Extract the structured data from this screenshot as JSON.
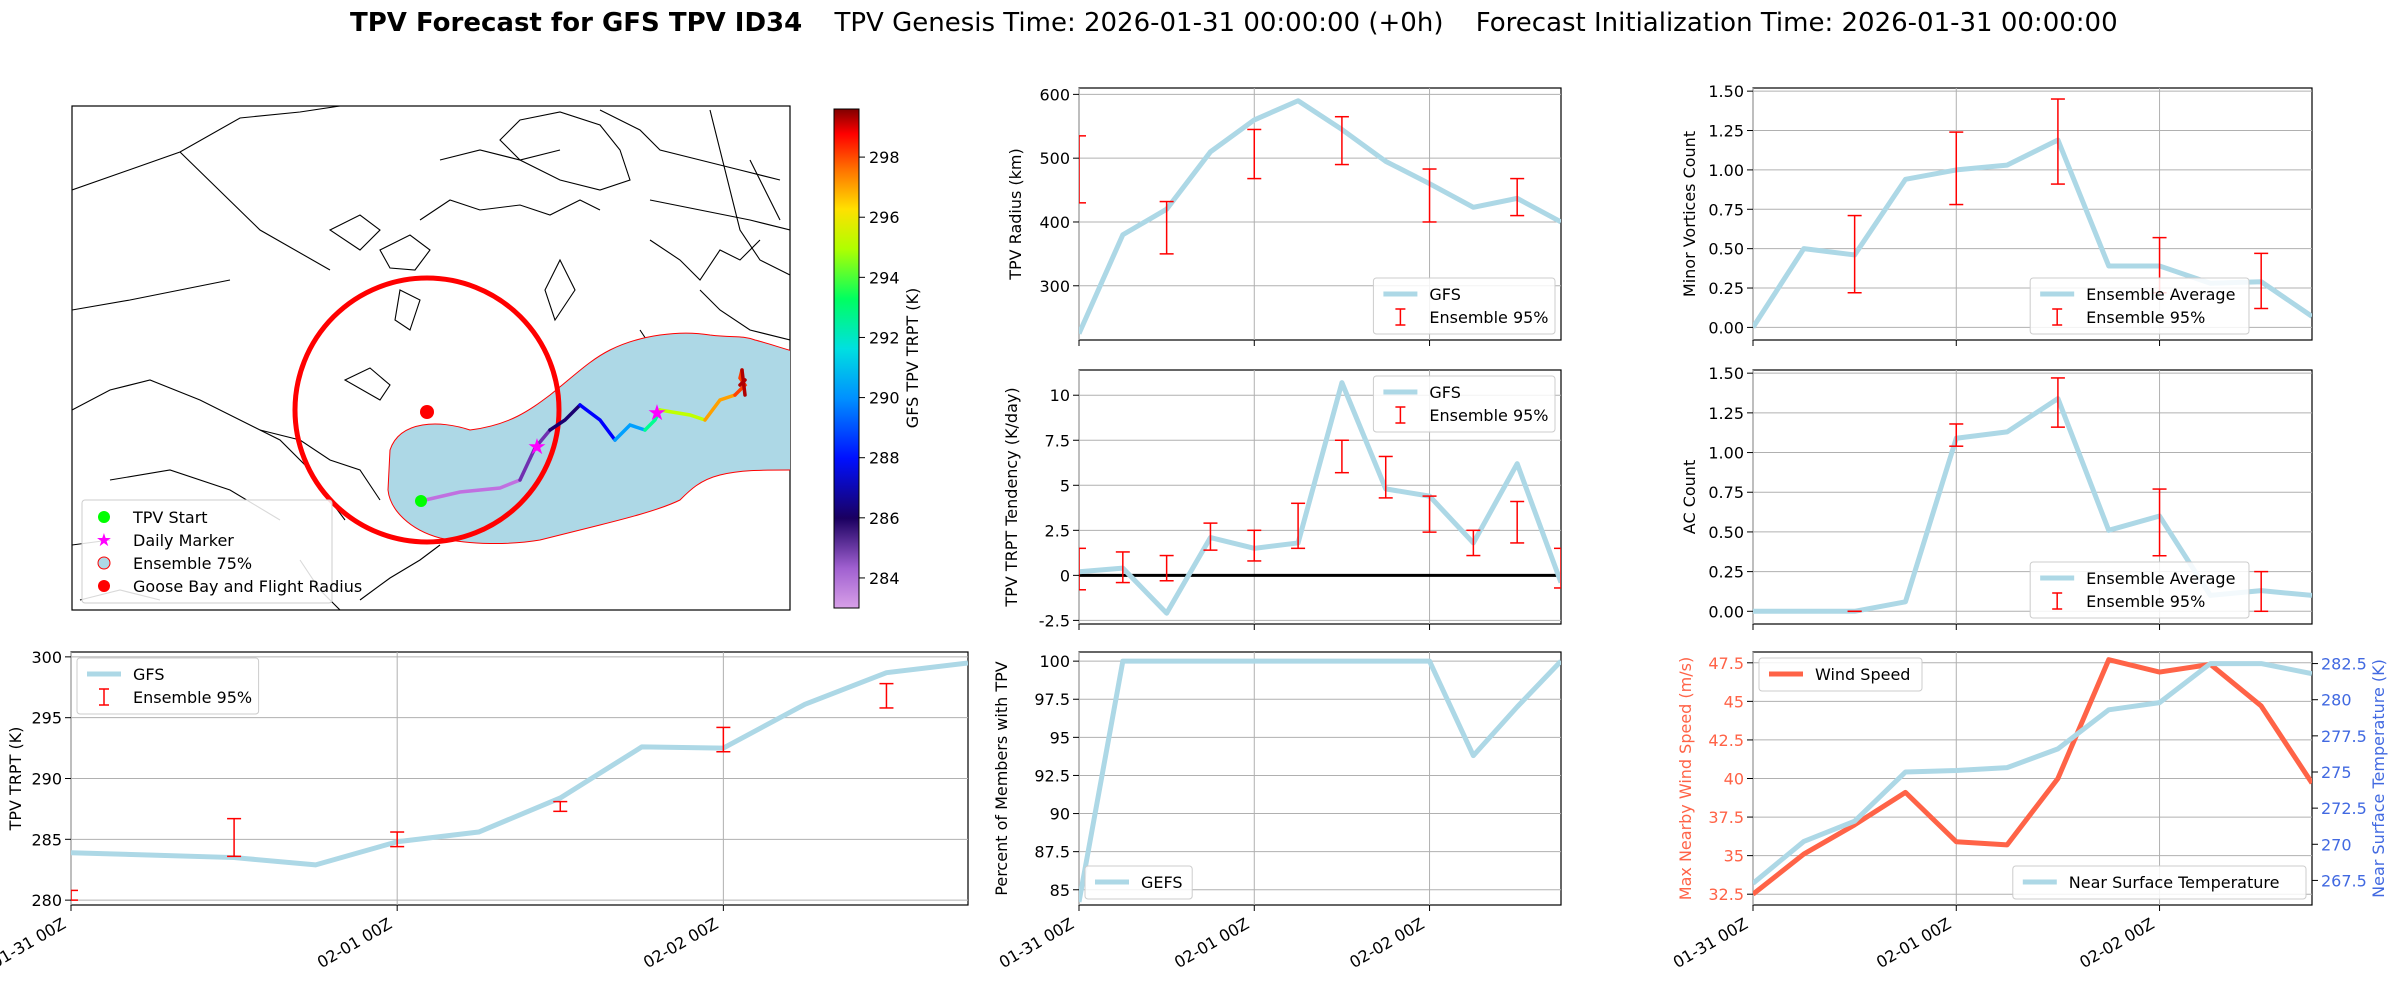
{
  "title": {
    "bold": "TPV Forecast for GFS TPV ID34",
    "genesis": "TPV Genesis Time: 2026-01-31 00:00:00 (+0h)",
    "init": "Forecast Initialization Time: 2026-01-31 00:00:00"
  },
  "colors": {
    "gfs_line": "#add8e6",
    "errorbar": "#ff0000",
    "wind": "#ff6347",
    "temp_axis": "#4169e1",
    "ensemble_fill": "#add8e6",
    "flight_radius": "#ff0000",
    "start_marker": "#00ff00",
    "daily_marker": "#ff00ff"
  },
  "map": {
    "legend": [
      "TPV Start",
      "Daily Marker",
      "Ensemble 75%",
      "Goose Bay and Flight Radius"
    ],
    "colorbar_label": "GFS TPV TRPT (K)",
    "colorbar_ticks": [
      "284",
      "286",
      "288",
      "290",
      "292",
      "294",
      "296",
      "298"
    ]
  },
  "time_ticks": [
    "01-31 00Z",
    "02-01 00Z",
    "02-02 00Z"
  ],
  "chart_data": [
    {
      "id": "radius",
      "type": "line",
      "ylabel": "TPV Radius (km)",
      "yticks": [
        300,
        400,
        500,
        600
      ],
      "ylim": [
        215,
        610
      ],
      "series": [
        {
          "name": "GFS",
          "values": [
            225,
            380,
            420,
            510,
            560,
            590,
            545,
            495,
            460,
            423,
            437,
            400
          ]
        }
      ],
      "errorbars": {
        "name": "Ensemble 95%",
        "lows": [
          430,
          null,
          350,
          null,
          468,
          null,
          490,
          null,
          400,
          null,
          410,
          null
        ],
        "highs": [
          535,
          null,
          432,
          null,
          545,
          null,
          565,
          null,
          483,
          null,
          468,
          null
        ]
      },
      "legend": [
        "GFS",
        "Ensemble 95%"
      ]
    },
    {
      "id": "tendency",
      "type": "line",
      "ylabel": "TPV TRPT Tendency (K/day)",
      "yticks": [
        -2.5,
        0.0,
        2.5,
        5.0,
        7.5,
        10.0
      ],
      "ylim": [
        -2.7,
        11.4
      ],
      "series": [
        {
          "name": "GFS",
          "values": [
            0.2,
            0.4,
            -2.1,
            2.1,
            1.5,
            1.8,
            10.7,
            4.8,
            4.4,
            1.8,
            6.2,
            -0.4
          ]
        }
      ],
      "errorbars": {
        "name": "Ensemble 95%",
        "lows": [
          -0.8,
          -0.4,
          -0.3,
          1.4,
          0.8,
          1.5,
          5.7,
          4.3,
          2.4,
          1.1,
          1.8,
          -0.7
        ],
        "highs": [
          1.5,
          1.3,
          1.1,
          2.9,
          2.5,
          4.0,
          7.5,
          6.6,
          4.4,
          2.5,
          4.1,
          1.5
        ]
      },
      "legend": [
        "GFS",
        "Ensemble 95%"
      ]
    },
    {
      "id": "members",
      "type": "line",
      "ylabel": "Percent of Members with TPV",
      "yticks": [
        85.0,
        87.5,
        90.0,
        92.5,
        95.0,
        97.5,
        100.0
      ],
      "ylim": [
        84.0,
        100.6
      ],
      "series": [
        {
          "name": "GEFS",
          "values": [
            84.2,
            100,
            100,
            100,
            100,
            100,
            100,
            100,
            100,
            93.8,
            97,
            100
          ]
        }
      ],
      "legend": [
        "GEFS"
      ]
    },
    {
      "id": "trpt",
      "type": "line",
      "ylabel": "TPV TRPT (K)",
      "yticks": [
        280,
        285,
        290,
        295,
        300
      ],
      "ylim": [
        279.6,
        300.4
      ],
      "series": [
        {
          "name": "GFS",
          "values": [
            283.9,
            283.7,
            283.5,
            282.9,
            284.8,
            285.6,
            288.4,
            292.6,
            292.5,
            296.1,
            298.7,
            299.5
          ]
        }
      ],
      "errorbars": {
        "name": "Ensemble 95%",
        "lows": [
          280.0,
          null,
          283.6,
          null,
          284.4,
          null,
          287.3,
          null,
          292.2,
          null,
          295.8,
          null
        ],
        "highs": [
          280.8,
          null,
          286.7,
          null,
          285.6,
          null,
          288.1,
          null,
          294.2,
          null,
          297.8,
          null
        ]
      },
      "legend": [
        "GFS",
        "Ensemble 95%"
      ]
    },
    {
      "id": "minor",
      "type": "line",
      "ylabel": "Minor Vortices Count",
      "yticks": [
        0.0,
        0.25,
        0.5,
        0.75,
        1.0,
        1.25,
        1.5
      ],
      "ylim": [
        -0.08,
        1.52
      ],
      "series": [
        {
          "name": "Ensemble Average",
          "values": [
            0.0,
            0.5,
            0.46,
            0.94,
            1.0,
            1.03,
            1.19,
            0.39,
            0.39,
            0.28,
            0.29,
            0.07
          ]
        }
      ],
      "errorbars": {
        "name": "Ensemble 95%",
        "lows": [
          null,
          null,
          0.22,
          null,
          0.78,
          null,
          0.91,
          null,
          0.22,
          null,
          0.12,
          null
        ],
        "highs": [
          null,
          null,
          0.71,
          null,
          1.24,
          null,
          1.45,
          null,
          0.57,
          null,
          0.47,
          null
        ]
      },
      "legend": [
        "Ensemble Average",
        "Ensemble 95%"
      ]
    },
    {
      "id": "ac",
      "type": "line",
      "ylabel": "AC Count",
      "yticks": [
        0.0,
        0.25,
        0.5,
        0.75,
        1.0,
        1.25,
        1.5
      ],
      "ylim": [
        -0.08,
        1.52
      ],
      "series": [
        {
          "name": "Ensemble Average",
          "values": [
            0.0,
            0.0,
            0.0,
            0.06,
            1.09,
            1.13,
            1.34,
            0.51,
            0.6,
            0.1,
            0.13,
            0.1
          ]
        }
      ],
      "errorbars": {
        "name": "Ensemble 95%",
        "lows": [
          null,
          null,
          0.0,
          null,
          1.04,
          null,
          1.16,
          null,
          0.35,
          null,
          0.0,
          null
        ],
        "highs": [
          null,
          null,
          0.0,
          null,
          1.18,
          null,
          1.47,
          null,
          0.77,
          null,
          0.25,
          null
        ]
      },
      "legend": [
        "Ensemble Average",
        "Ensemble 95%"
      ]
    },
    {
      "id": "wind_temp",
      "type": "line",
      "ylabel_left": "Max Nearby Wind Speed (m/s)",
      "ylabel_right": "Near Surface Temperature (K)",
      "yticks_left": [
        32.5,
        35.0,
        37.5,
        40.0,
        42.5,
        45.0,
        47.5
      ],
      "yticks_right": [
        267.5,
        270.0,
        272.5,
        275.0,
        277.5,
        280.0,
        282.5
      ],
      "ylim_left": [
        31.8,
        48.2
      ],
      "ylim_right": [
        265.8,
        283.3
      ],
      "series": [
        {
          "name": "Wind Speed",
          "axis": "left",
          "values": [
            32.5,
            35.1,
            37.0,
            39.1,
            35.9,
            35.7,
            40.0,
            47.7,
            46.9,
            47.4,
            44.7,
            39.7
          ]
        },
        {
          "name": "Near Surface Temperature",
          "axis": "right",
          "values": [
            267.3,
            270.2,
            271.6,
            275.0,
            275.1,
            275.3,
            276.6,
            279.3,
            279.8,
            282.5,
            282.5,
            281.8
          ]
        }
      ],
      "legend": [
        "Wind Speed",
        "Near Surface Temperature"
      ]
    }
  ]
}
